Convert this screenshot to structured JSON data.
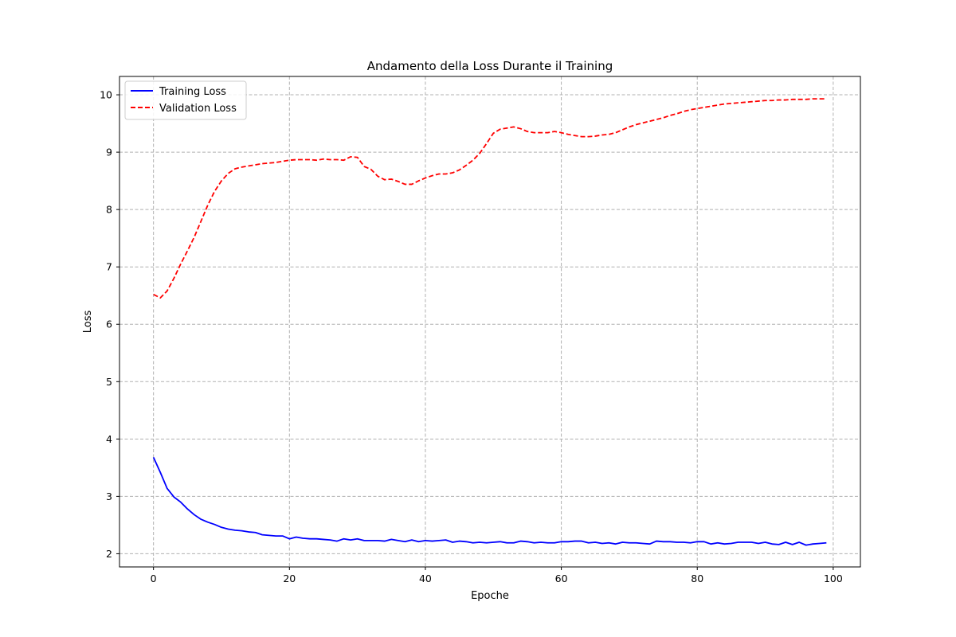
{
  "chart_data": {
    "type": "line",
    "title": "Andamento della Loss Durante il Training",
    "xlabel": "Epoche",
    "ylabel": "Loss",
    "xlim": [
      -5,
      104
    ],
    "ylim": [
      1.77,
      10.32
    ],
    "xticks": [
      0,
      20,
      40,
      60,
      80,
      100
    ],
    "yticks": [
      2,
      3,
      4,
      5,
      6,
      7,
      8,
      9,
      10
    ],
    "grid": true,
    "legend_position": "top-left",
    "series": [
      {
        "name": "Training Loss",
        "color": "#0000ff",
        "style": "solid",
        "values": [
          3.68,
          3.42,
          3.14,
          2.99,
          2.9,
          2.78,
          2.68,
          2.6,
          2.55,
          2.51,
          2.46,
          2.43,
          2.41,
          2.4,
          2.38,
          2.37,
          2.33,
          2.32,
          2.31,
          2.31,
          2.26,
          2.29,
          2.27,
          2.26,
          2.26,
          2.25,
          2.24,
          2.22,
          2.26,
          2.24,
          2.26,
          2.23,
          2.23,
          2.23,
          2.22,
          2.25,
          2.23,
          2.21,
          2.24,
          2.21,
          2.23,
          2.22,
          2.23,
          2.24,
          2.2,
          2.22,
          2.21,
          2.19,
          2.2,
          2.19,
          2.2,
          2.21,
          2.19,
          2.19,
          2.22,
          2.21,
          2.19,
          2.2,
          2.19,
          2.19,
          2.21,
          2.21,
          2.22,
          2.22,
          2.19,
          2.2,
          2.18,
          2.19,
          2.17,
          2.2,
          2.19,
          2.19,
          2.18,
          2.17,
          2.22,
          2.21,
          2.21,
          2.2,
          2.2,
          2.19,
          2.21,
          2.21,
          2.17,
          2.19,
          2.17,
          2.18,
          2.2,
          2.2,
          2.2,
          2.18,
          2.2,
          2.17,
          2.16,
          2.2,
          2.16,
          2.2,
          2.15,
          2.17,
          2.18,
          2.19
        ]
      },
      {
        "name": "Validation Loss",
        "color": "#ff0000",
        "style": "dashed",
        "values": [
          6.52,
          6.46,
          6.58,
          6.8,
          7.05,
          7.28,
          7.52,
          7.8,
          8.08,
          8.32,
          8.5,
          8.63,
          8.71,
          8.74,
          8.76,
          8.78,
          8.8,
          8.81,
          8.82,
          8.84,
          8.86,
          8.87,
          8.87,
          8.87,
          8.86,
          8.88,
          8.87,
          8.87,
          8.86,
          8.92,
          8.91,
          8.75,
          8.7,
          8.58,
          8.52,
          8.53,
          8.49,
          8.44,
          8.44,
          8.5,
          8.55,
          8.59,
          8.62,
          8.62,
          8.64,
          8.69,
          8.77,
          8.86,
          8.98,
          9.15,
          9.33,
          9.4,
          9.42,
          9.44,
          9.41,
          9.36,
          9.34,
          9.34,
          9.34,
          9.36,
          9.34,
          9.31,
          9.29,
          9.27,
          9.27,
          9.28,
          9.3,
          9.31,
          9.34,
          9.39,
          9.44,
          9.48,
          9.51,
          9.54,
          9.57,
          9.6,
          9.64,
          9.67,
          9.71,
          9.74,
          9.76,
          9.78,
          9.8,
          9.82,
          9.84,
          9.85,
          9.86,
          9.87,
          9.88,
          9.89,
          9.9,
          9.9,
          9.91,
          9.91,
          9.92,
          9.92,
          9.92,
          9.93,
          9.93,
          9.93
        ]
      }
    ]
  }
}
